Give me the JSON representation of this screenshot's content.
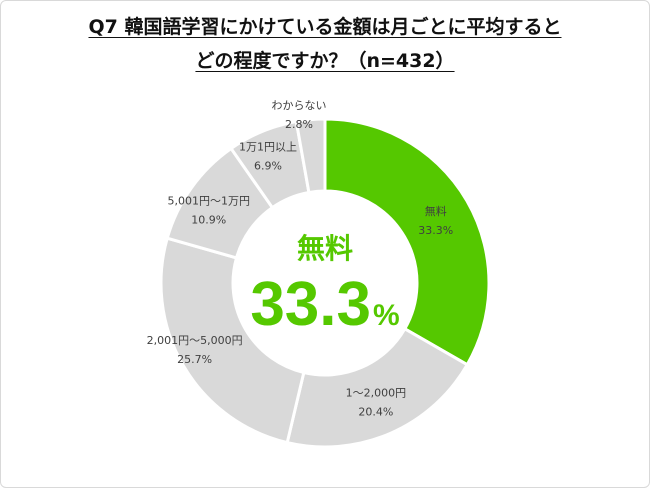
{
  "title_line1": "Q7 韓国語学習にかけている金額は月ごとに平均すると",
  "title_line2": "どの程度ですか？（n=432）",
  "center": {
    "label": "無料",
    "value": "33.3",
    "unit": "%"
  },
  "colors": {
    "highlight": "#55c800",
    "other": "#d9d9d9",
    "separator": "#ffffff"
  },
  "chart_data": {
    "type": "pie",
    "donut": true,
    "title": "Q7 韓国語学習にかけている金額は月ごとに平均するとどの程度ですか？（n=432）",
    "categories": [
      "無料",
      "1〜2,000円",
      "2,001円〜5,000円",
      "5,001円〜1万円",
      "1万1円以上",
      "わからない"
    ],
    "values": [
      33.3,
      20.4,
      25.7,
      10.9,
      6.9,
      2.8
    ],
    "value_labels": [
      "33.3%",
      "20.4%",
      "25.7%",
      "10.9%",
      "6.9%",
      "2.8%"
    ],
    "unit": "%",
    "start": "12 o'clock, clockwise"
  }
}
